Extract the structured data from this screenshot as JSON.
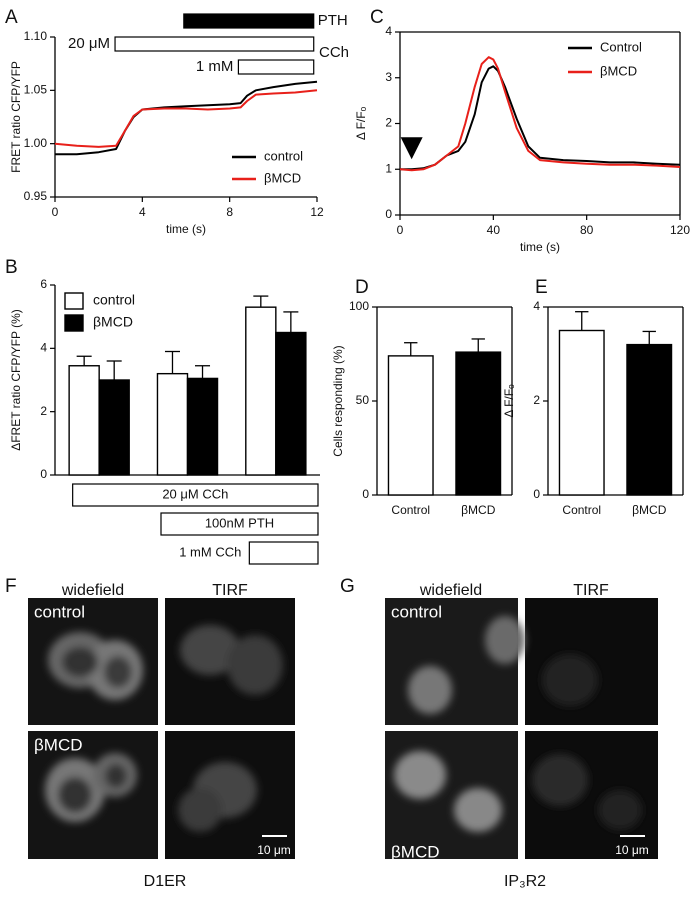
{
  "chart_data": [
    {
      "type": "line",
      "panel_label": "A",
      "x_label": "time (s)",
      "y_label": "FRET ratio CFP/YFP",
      "x": [
        0,
        1,
        2,
        2.8,
        3.2,
        3.6,
        4,
        5,
        6,
        7,
        8,
        8.5,
        8.8,
        9.2,
        10,
        11,
        12
      ],
      "series": [
        {
          "name": "control",
          "color": "#000000",
          "values": [
            0.99,
            0.99,
            0.992,
            0.995,
            1.012,
            1.025,
            1.032,
            1.034,
            1.035,
            1.036,
            1.037,
            1.038,
            1.045,
            1.05,
            1.053,
            1.056,
            1.058
          ]
        },
        {
          "name": "βMCD",
          "color": "#e8201a",
          "values": [
            1.0,
            0.998,
            0.997,
            0.998,
            1.012,
            1.026,
            1.032,
            1.033,
            1.033,
            1.032,
            1.033,
            1.034,
            1.04,
            1.046,
            1.047,
            1.048,
            1.05
          ]
        }
      ],
      "xlim": [
        0,
        12
      ],
      "xticks": [
        0,
        4,
        8,
        12
      ],
      "ylim": [
        0.95,
        1.1
      ],
      "yticks": [
        0.95,
        {
          "value": 1.0,
          "label": "1.00"
        },
        1.05,
        {
          "value": 1.1,
          "label": "1.10"
        }
      ],
      "legend": "lower right",
      "frame": false,
      "stimuli": [
        {
          "name": "PTH",
          "start": 5.9,
          "end": 11.85,
          "fill": "#000000",
          "label_side": "right"
        },
        {
          "name": "20 μM",
          "start": 2.75,
          "end": 11.85,
          "fill": "#ffffff",
          "label_side": "left"
        },
        {
          "name": "1 mM",
          "start": 8.4,
          "end": 11.85,
          "fill": "#ffffff",
          "label_side": "left"
        }
      ],
      "bracket_label": "CCh"
    },
    {
      "type": "bar",
      "panel_label": "B",
      "y_label": "ΔFRET ratio CFP/YFP (%)",
      "categories": [
        null,
        null,
        null
      ],
      "series": [
        {
          "name": "control",
          "color": "#ffffff",
          "values": [
            3.45,
            3.2,
            5.3
          ],
          "errors": [
            0.3,
            0.7,
            0.35
          ]
        },
        {
          "name": "βMCD",
          "color": "#000000",
          "values": [
            3.0,
            3.05,
            4.5
          ],
          "errors": [
            0.6,
            0.4,
            0.65
          ]
        }
      ],
      "ylim": [
        0,
        6
      ],
      "yticks": [
        0,
        2,
        4,
        6
      ],
      "legend": "upper left",
      "frame": false,
      "conditions": [
        {
          "label": "20 μM CCh",
          "from": 0,
          "to": 2
        },
        {
          "label": "100nM PTH",
          "from": 1,
          "to": 2
        },
        {
          "label": "1 mM CCh",
          "from": 2,
          "to": 2
        }
      ]
    },
    {
      "type": "line",
      "panel_label": "C",
      "x_label": "time (s)",
      "y_label": "Δ F/Fₒ",
      "x": [
        0,
        5,
        10,
        15,
        20,
        25,
        28,
        32,
        35,
        38,
        40,
        42,
        45,
        50,
        55,
        60,
        70,
        80,
        90,
        100,
        110,
        120
      ],
      "series": [
        {
          "name": "Control",
          "color": "#000000",
          "values": [
            1.0,
            1.0,
            1.02,
            1.1,
            1.3,
            1.4,
            1.6,
            2.2,
            2.9,
            3.2,
            3.25,
            3.15,
            2.8,
            2.1,
            1.5,
            1.25,
            1.2,
            1.18,
            1.15,
            1.15,
            1.12,
            1.1
          ]
        },
        {
          "name": "βMCD",
          "color": "#e8201a",
          "values": [
            1.0,
            0.98,
            1.0,
            1.1,
            1.3,
            1.5,
            2.0,
            2.8,
            3.3,
            3.45,
            3.4,
            3.2,
            2.7,
            1.9,
            1.4,
            1.2,
            1.15,
            1.12,
            1.1,
            1.1,
            1.08,
            1.05
          ]
        }
      ],
      "xlim": [
        0,
        120
      ],
      "xticks": [
        0,
        40,
        80,
        120
      ],
      "ylim": [
        0,
        4
      ],
      "yticks": [
        0,
        1,
        2,
        3,
        4
      ],
      "legend": "upper right",
      "frame": true,
      "marker_x": 5
    },
    {
      "type": "bar",
      "panel_label": "D",
      "y_label": "Cells responding (%)",
      "categories": [
        "Control",
        "βMCD"
      ],
      "values": [
        74,
        76
      ],
      "errors": [
        7,
        7
      ],
      "colors": [
        "#ffffff",
        "#000000"
      ],
      "ylim": [
        0,
        100
      ],
      "yticks": [
        0,
        50,
        100
      ],
      "frame": true
    },
    {
      "type": "bar",
      "panel_label": "E",
      "y_label": "Δ F/Fₒ",
      "categories": [
        "Control",
        "βMCD"
      ],
      "values": [
        3.5,
        3.2
      ],
      "errors": [
        0.4,
        0.28
      ],
      "colors": [
        "#ffffff",
        "#000000"
      ],
      "ylim": [
        0,
        4
      ],
      "yticks": [
        0,
        2,
        4
      ],
      "frame": true
    }
  ],
  "image_panels": [
    {
      "letter": "F",
      "columns": [
        "widefield",
        "TIRF"
      ],
      "rows": [
        "control",
        "βMCD"
      ],
      "scale_bar": "10 μm",
      "caption": "D1ER"
    },
    {
      "letter": "G",
      "columns": [
        "widefield",
        "TIRF"
      ],
      "rows": [
        "control",
        "βMCD"
      ],
      "scale_bar": "10 μm",
      "caption": "IP₃R2"
    }
  ]
}
